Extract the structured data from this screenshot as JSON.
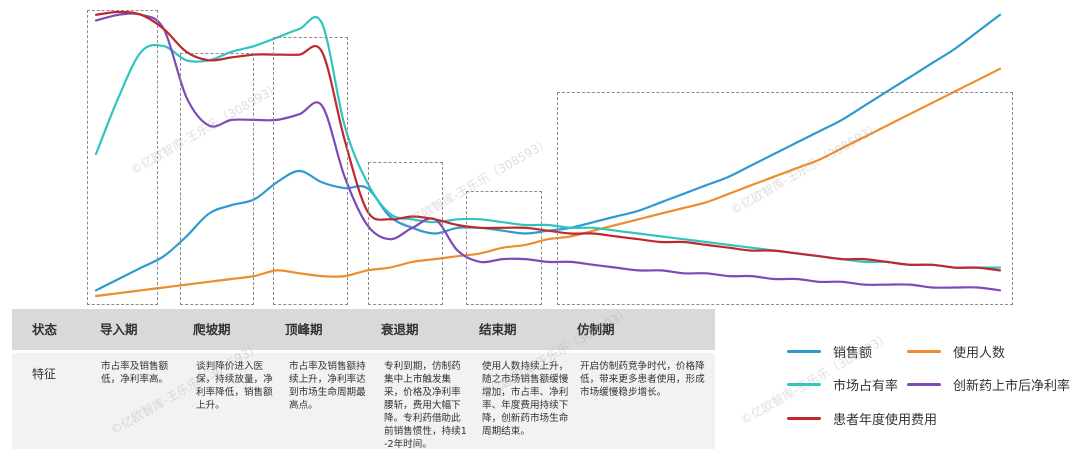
{
  "chart_data": {
    "type": "line",
    "x": [
      0,
      0.5,
      1,
      1.5,
      2,
      2.5,
      3,
      3.5,
      4,
      4.5,
      5,
      5.5,
      6,
      6.5,
      7,
      7.5,
      8,
      8.5,
      9,
      9.5,
      10,
      10.5,
      11,
      11.5,
      12,
      12.5,
      13,
      13.5,
      14,
      14.5,
      15,
      15.5,
      16,
      16.5,
      17,
      17.5,
      18,
      18.5,
      19,
      19.5,
      20
    ],
    "ylim": [
      0,
      100
    ],
    "grid": false,
    "legend": "right",
    "series": [
      {
        "name": "销售额",
        "color": "#2e9ad0",
        "values": [
          2,
          6,
          10,
          14,
          21,
          29,
          32,
          34,
          40,
          44,
          40,
          38,
          38,
          28,
          24,
          22,
          24,
          24,
          23,
          22,
          23,
          24,
          26,
          28,
          30,
          33,
          36,
          39,
          42,
          46,
          50,
          54,
          58,
          62,
          67,
          72,
          77,
          82,
          87,
          93,
          99
        ]
      },
      {
        "name": "使用人数",
        "color": "#ee8c2e",
        "values": [
          0,
          1,
          2,
          3,
          4,
          5,
          6,
          7,
          9,
          8,
          7,
          7,
          9,
          10,
          12,
          13,
          14,
          15,
          17,
          18,
          20,
          21,
          23,
          25,
          27,
          29,
          31,
          33,
          36,
          39,
          42,
          45,
          48,
          52,
          56,
          60,
          64,
          68,
          72,
          76,
          80
        ]
      },
      {
        "name": "市场占有率",
        "color": "#2ec5c1",
        "values": [
          50,
          70,
          86,
          88,
          83,
          83,
          86,
          88,
          91,
          94,
          96,
          60,
          40,
          29,
          27,
          26,
          27,
          27,
          26,
          25,
          25,
          24,
          24,
          23,
          22,
          21,
          20,
          19,
          18,
          17,
          16,
          15,
          14,
          13,
          12,
          12,
          11,
          11,
          10,
          10,
          10
        ]
      },
      {
        "name": "创新药上市后净利率",
        "color": "#8048b8",
        "values": [
          97,
          99,
          99,
          94,
          70,
          60,
          62,
          62,
          62,
          64,
          67,
          42,
          25,
          20,
          24,
          27,
          16,
          12,
          13,
          13,
          12,
          12,
          11,
          10,
          9,
          9,
          8,
          8,
          7,
          7,
          6,
          6,
          5,
          5,
          4,
          4,
          4,
          3,
          3,
          3,
          2
        ]
      },
      {
        "name": "患者年度使用费用",
        "color": "#c0282e",
        "values": [
          99,
          100,
          99,
          94,
          86,
          83,
          84,
          85,
          85,
          85,
          86,
          55,
          30,
          27,
          28,
          27,
          25,
          24,
          24,
          24,
          23,
          22,
          22,
          21,
          20,
          19,
          19,
          18,
          17,
          16,
          16,
          15,
          14,
          13,
          13,
          12,
          11,
          11,
          10,
          10,
          9
        ]
      }
    ]
  },
  "table": {
    "header": [
      "状态",
      "导入期",
      "爬坡期",
      "顶峰期",
      "衰退期",
      "结束期",
      "仿制期"
    ],
    "row_label": "特征",
    "descriptions": [
      "市占率及销售额低，净利率高。",
      "谈判降价进入医保，持续放量，净利率降低，销售额上升。",
      "市占率及销售额持续上升，净利率达到市场生命周期最高点。",
      "专利到期，仿制药集中上市触发集采，价格及净利率腰斩，费用大幅下降。专利药借助此前销售惯性，持续1-2年时间。",
      "使用人数持续上升，随之市场销售额缓慢增加，市占率、净利率、年度费用持续下降，创新药市场生命周期结束。",
      "开启仿制药竞争时代，价格降低，带来更多患者使用，形成市场缓慢稳步增长。"
    ]
  },
  "watermark": "©亿欧智库-王乐乐（308593）"
}
